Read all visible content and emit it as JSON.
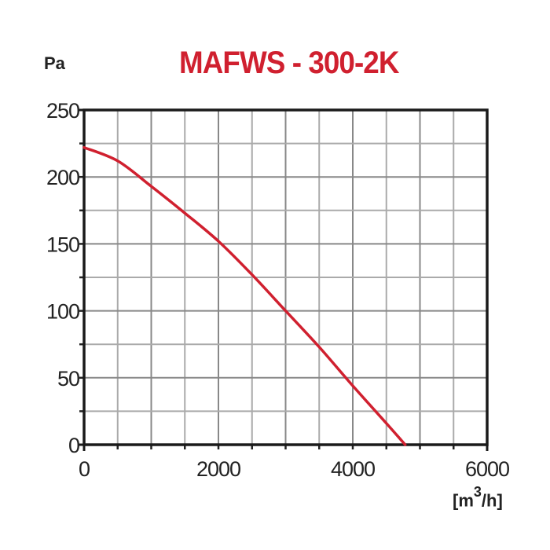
{
  "chart_data": {
    "type": "line",
    "title": "MAFWS - 300-2K",
    "xlabel": "[m3/h]",
    "ylabel": "Pa",
    "xlim": [
      0,
      6000
    ],
    "ylim": [
      0,
      250
    ],
    "x_ticks": [
      0,
      2000,
      4000,
      6000
    ],
    "y_ticks": [
      0,
      50,
      100,
      150,
      200,
      250
    ],
    "grid": true,
    "series": [
      {
        "name": "MAFWS - 300-2K",
        "color": "#d0202f",
        "x": [
          0,
          500,
          1000,
          1500,
          2000,
          2500,
          3000,
          3500,
          4000,
          4500,
          4780
        ],
        "y": [
          222,
          212,
          193,
          173,
          152,
          127,
          100,
          73,
          44,
          16,
          0
        ]
      }
    ]
  },
  "labels": {
    "title": "MAFWS - 300-2K",
    "y_unit": "Pa",
    "x_unit_prefix": "[m",
    "x_unit_sup": "3",
    "x_unit_suffix": "/h]"
  }
}
